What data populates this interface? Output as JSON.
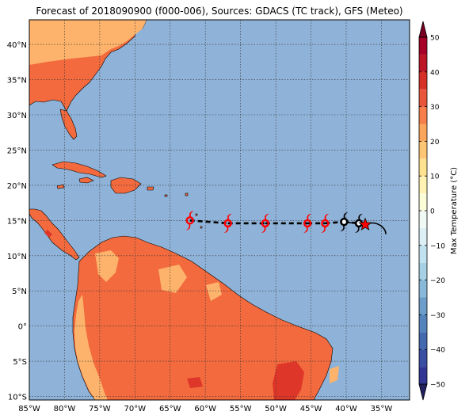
{
  "title": "Forecast of 2018090900 (f000-006), Sources: GDACS (TC track), GFS (Meteo)",
  "map": {
    "lon_range": [
      -85,
      -31
    ],
    "lat_range": [
      -10.5,
      43.5
    ],
    "lon_ticks": [
      {
        "value": -85,
        "label": "85°W"
      },
      {
        "value": -80,
        "label": "80°W"
      },
      {
        "value": -75,
        "label": "75°W"
      },
      {
        "value": -70,
        "label": "70°W"
      },
      {
        "value": -65,
        "label": "65°W"
      },
      {
        "value": -60,
        "label": "60°W"
      },
      {
        "value": -55,
        "label": "55°W"
      },
      {
        "value": -50,
        "label": "50°W"
      },
      {
        "value": -45,
        "label": "45°W"
      },
      {
        "value": -40,
        "label": "40°W"
      },
      {
        "value": -35,
        "label": "35°W"
      }
    ],
    "lat_ticks": [
      {
        "value": 40,
        "label": "40°N"
      },
      {
        "value": 35,
        "label": "35°N"
      },
      {
        "value": 30,
        "label": "30°N"
      },
      {
        "value": 25,
        "label": "25°N"
      },
      {
        "value": 20,
        "label": "20°N"
      },
      {
        "value": 15,
        "label": "15°N"
      },
      {
        "value": 10,
        "label": "10°N"
      },
      {
        "value": 5,
        "label": "5°N"
      },
      {
        "value": 0,
        "label": "0°"
      },
      {
        "value": -5,
        "label": "5°S"
      },
      {
        "value": -10,
        "label": "10°S"
      }
    ],
    "colors": {
      "ocean": "#8fb3d8",
      "land_main": "#f26a3e",
      "land_warm": "#fdb36b",
      "land_hot": "#de3628",
      "grid": "#333333",
      "track_dashed": "#000000",
      "icon_forecast": "#ff0000",
      "icon_current": "#000000"
    }
  },
  "track": {
    "forecast_positions": [
      {
        "lon": -62.2,
        "lat": 15.0
      },
      {
        "lon": -56.8,
        "lat": 14.6
      },
      {
        "lon": -51.5,
        "lat": 14.6
      },
      {
        "lon": -45.5,
        "lat": 14.6
      },
      {
        "lon": -43.0,
        "lat": 14.6
      }
    ],
    "recent_positions": [
      {
        "lon": -40.3,
        "lat": 14.8
      },
      {
        "lon": -38.2,
        "lat": 14.6
      }
    ],
    "current_position": {
      "lon": -37.3,
      "lat": 14.4
    },
    "icon_forecast": "hurricane-symbol-red",
    "icon_recent": "hurricane-symbol-black",
    "icon_current": "star-icon"
  },
  "colorbar": {
    "label": "Max Temperature (°C)",
    "min": -50,
    "max": 50,
    "ticks": [
      {
        "value": 50,
        "label": "50"
      },
      {
        "value": 40,
        "label": "40"
      },
      {
        "value": 30,
        "label": "30"
      },
      {
        "value": 20,
        "label": "20"
      },
      {
        "value": 10,
        "label": "10"
      },
      {
        "value": 0,
        "label": "0"
      },
      {
        "value": -10,
        "label": "−10"
      },
      {
        "value": -20,
        "label": "−20"
      },
      {
        "value": -30,
        "label": "−30"
      },
      {
        "value": -40,
        "label": "−40"
      },
      {
        "value": -50,
        "label": "−50"
      }
    ],
    "bands": [
      {
        "from": -50,
        "to": -45,
        "color": "#313695"
      },
      {
        "from": -45,
        "to": -40,
        "color": "#3a4ea2"
      },
      {
        "from": -40,
        "to": -35,
        "color": "#4569ae"
      },
      {
        "from": -35,
        "to": -30,
        "color": "#5484bb"
      },
      {
        "from": -30,
        "to": -25,
        "color": "#6d9ec9"
      },
      {
        "from": -25,
        "to": -20,
        "color": "#8ab8d8"
      },
      {
        "from": -20,
        "to": -15,
        "color": "#a6d0e4"
      },
      {
        "from": -15,
        "to": -10,
        "color": "#c1e2ee"
      },
      {
        "from": -10,
        "to": -5,
        "color": "#dcf0f5"
      },
      {
        "from": -5,
        "to": 0,
        "color": "#f1f9f4"
      },
      {
        "from": 0,
        "to": 5,
        "color": "#fbfdd8"
      },
      {
        "from": 5,
        "to": 10,
        "color": "#fff2b2"
      },
      {
        "from": 10,
        "to": 15,
        "color": "#fee290"
      },
      {
        "from": 15,
        "to": 20,
        "color": "#fdc674"
      },
      {
        "from": 20,
        "to": 25,
        "color": "#fca55d"
      },
      {
        "from": 25,
        "to": 30,
        "color": "#f67f4b"
      },
      {
        "from": 30,
        "to": 35,
        "color": "#e8553b"
      },
      {
        "from": 35,
        "to": 40,
        "color": "#d73027"
      },
      {
        "from": 40,
        "to": 45,
        "color": "#bb1526"
      },
      {
        "from": 45,
        "to": 50,
        "color": "#a50026"
      }
    ],
    "extend_low_color": "#23205f",
    "extend_high_color": "#7a0022"
  }
}
